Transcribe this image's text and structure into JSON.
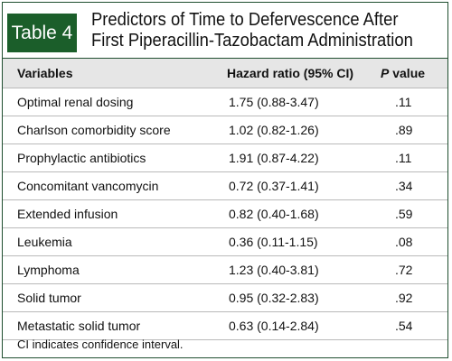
{
  "table_label": "Table 4",
  "title": {
    "line1": "Predictors of Time to Defervescence After",
    "line2": "First Piperacillin-Tazobactam Administration"
  },
  "columns": {
    "variables": "Variables",
    "hazard_ratio": "Hazard ratio (95% CI)",
    "p_value_letter": "P",
    "p_value_rest": " value"
  },
  "rows": [
    {
      "variable": "Optimal renal dosing",
      "hr": "1.75 (0.88-3.47)",
      "p": ".11"
    },
    {
      "variable": "Charlson comorbidity score",
      "hr": "1.02 (0.82-1.26)",
      "p": ".89"
    },
    {
      "variable": "Prophylactic antibiotics",
      "hr": "1.91 (0.87-4.22)",
      "p": ".11"
    },
    {
      "variable": "Concomitant vancomycin",
      "hr": "0.72 (0.37-1.41)",
      "p": ".34"
    },
    {
      "variable": "Extended infusion",
      "hr": "0.82 (0.40-1.68)",
      "p": ".59"
    },
    {
      "variable": "Leukemia",
      "hr": "0.36 (0.11-1.15)",
      "p": ".08"
    },
    {
      "variable": "Lymphoma",
      "hr": "1.23 (0.40-3.81)",
      "p": ".72"
    },
    {
      "variable": "Solid tumor",
      "hr": "0.95 (0.32-2.83)",
      "p": ".92"
    },
    {
      "variable": "Metastatic solid tumor",
      "hr": "0.63 (0.14-2.84)",
      "p": ".54"
    }
  ],
  "footnote": "CI indicates confidence interval.",
  "colors": {
    "tag_background": "#1b5e2a",
    "header_band": "#e6e6e6"
  }
}
